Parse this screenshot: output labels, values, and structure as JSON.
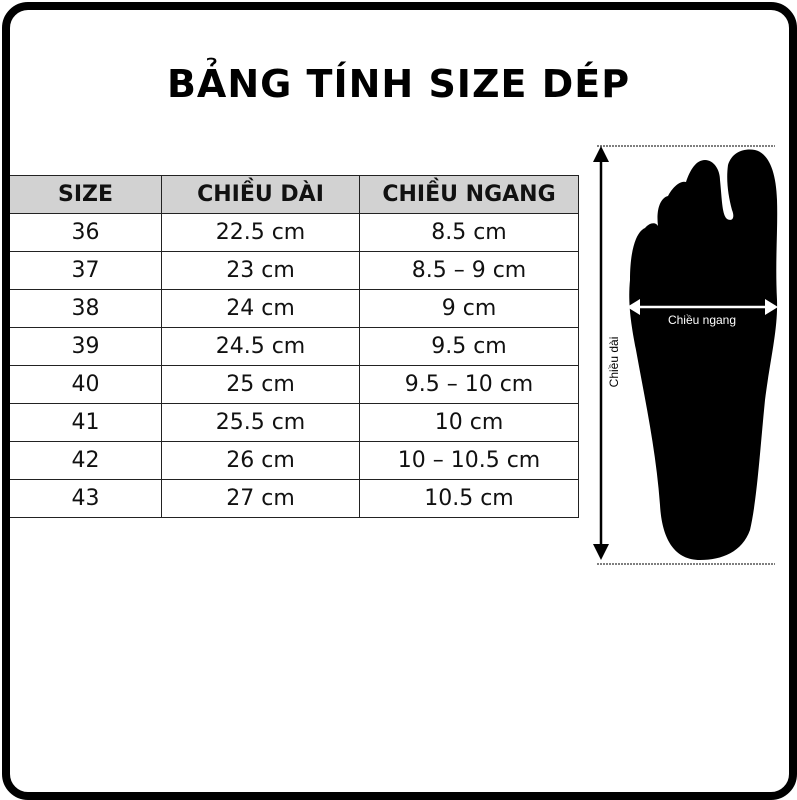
{
  "title": "BẢNG TÍNH SIZE DÉP",
  "table": {
    "headers": [
      "SIZE",
      "CHIỀU DÀI",
      "CHIỀU NGANG"
    ],
    "rows": [
      [
        "36",
        "22.5 cm",
        "8.5 cm"
      ],
      [
        "37",
        "23 cm",
        "8.5 – 9 cm"
      ],
      [
        "38",
        "24 cm",
        "9 cm"
      ],
      [
        "39",
        "24.5 cm",
        "9.5 cm"
      ],
      [
        "40",
        "25 cm",
        "9.5 – 10 cm"
      ],
      [
        "41",
        "25.5 cm",
        "10 cm"
      ],
      [
        "42",
        "26 cm",
        "10 – 10.5 cm"
      ],
      [
        "43",
        "27 cm",
        "10.5 cm"
      ]
    ]
  },
  "diagram": {
    "length_label": "Chiều dài",
    "width_label": "Chiều ngang"
  }
}
